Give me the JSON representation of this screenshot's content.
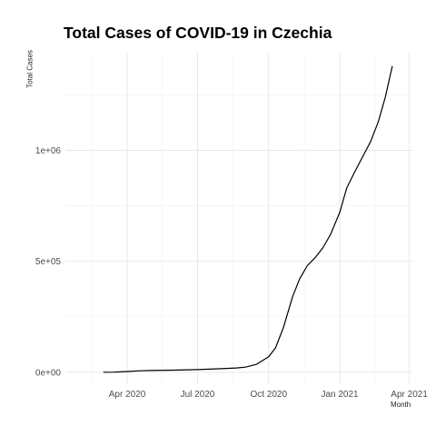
{
  "chart_data": {
    "type": "line",
    "title": "Total Cases of COVID-19 in Czechia",
    "xlabel": "Month",
    "ylabel": "Total Cases",
    "x_ticks": [
      {
        "date": "2020-04-01",
        "label": "Apr 2020"
      },
      {
        "date": "2020-07-01",
        "label": "Jul 2020"
      },
      {
        "date": "2020-10-01",
        "label": "Oct 2020"
      },
      {
        "date": "2021-01-01",
        "label": "Jan 2021"
      },
      {
        "date": "2021-04-01",
        "label": "Apr 2021"
      }
    ],
    "y_ticks": [
      {
        "value": 0,
        "label": "0e+00"
      },
      {
        "value": 500000,
        "label": "5e+05"
      },
      {
        "value": 1000000,
        "label": "1e+06"
      }
    ],
    "xlim": [
      "2020-01-12",
      "2021-04-05"
    ],
    "ylim": [
      -50000,
      1440000
    ],
    "grid": true,
    "series": [
      {
        "color": "#000000",
        "points": [
          {
            "x": "2020-03-01",
            "y": 0
          },
          {
            "x": "2020-03-15",
            "y": 300
          },
          {
            "x": "2020-04-01",
            "y": 3300
          },
          {
            "x": "2020-04-15",
            "y": 6100
          },
          {
            "x": "2020-05-01",
            "y": 7700
          },
          {
            "x": "2020-06-01",
            "y": 9300
          },
          {
            "x": "2020-07-01",
            "y": 12000
          },
          {
            "x": "2020-08-01",
            "y": 16000
          },
          {
            "x": "2020-08-20",
            "y": 19000
          },
          {
            "x": "2020-09-01",
            "y": 23000
          },
          {
            "x": "2020-09-15",
            "y": 35000
          },
          {
            "x": "2020-10-01",
            "y": 70000
          },
          {
            "x": "2020-10-10",
            "y": 110000
          },
          {
            "x": "2020-10-20",
            "y": 200000
          },
          {
            "x": "2020-11-01",
            "y": 340000
          },
          {
            "x": "2020-11-10",
            "y": 420000
          },
          {
            "x": "2020-11-20",
            "y": 480000
          },
          {
            "x": "2020-12-01",
            "y": 520000
          },
          {
            "x": "2020-12-10",
            "y": 560000
          },
          {
            "x": "2020-12-20",
            "y": 620000
          },
          {
            "x": "2021-01-01",
            "y": 720000
          },
          {
            "x": "2021-01-10",
            "y": 830000
          },
          {
            "x": "2021-01-20",
            "y": 900000
          },
          {
            "x": "2021-02-01",
            "y": 980000
          },
          {
            "x": "2021-02-10",
            "y": 1040000
          },
          {
            "x": "2021-02-20",
            "y": 1130000
          },
          {
            "x": "2021-03-01",
            "y": 1240000
          },
          {
            "x": "2021-03-10",
            "y": 1380000
          }
        ]
      }
    ]
  }
}
